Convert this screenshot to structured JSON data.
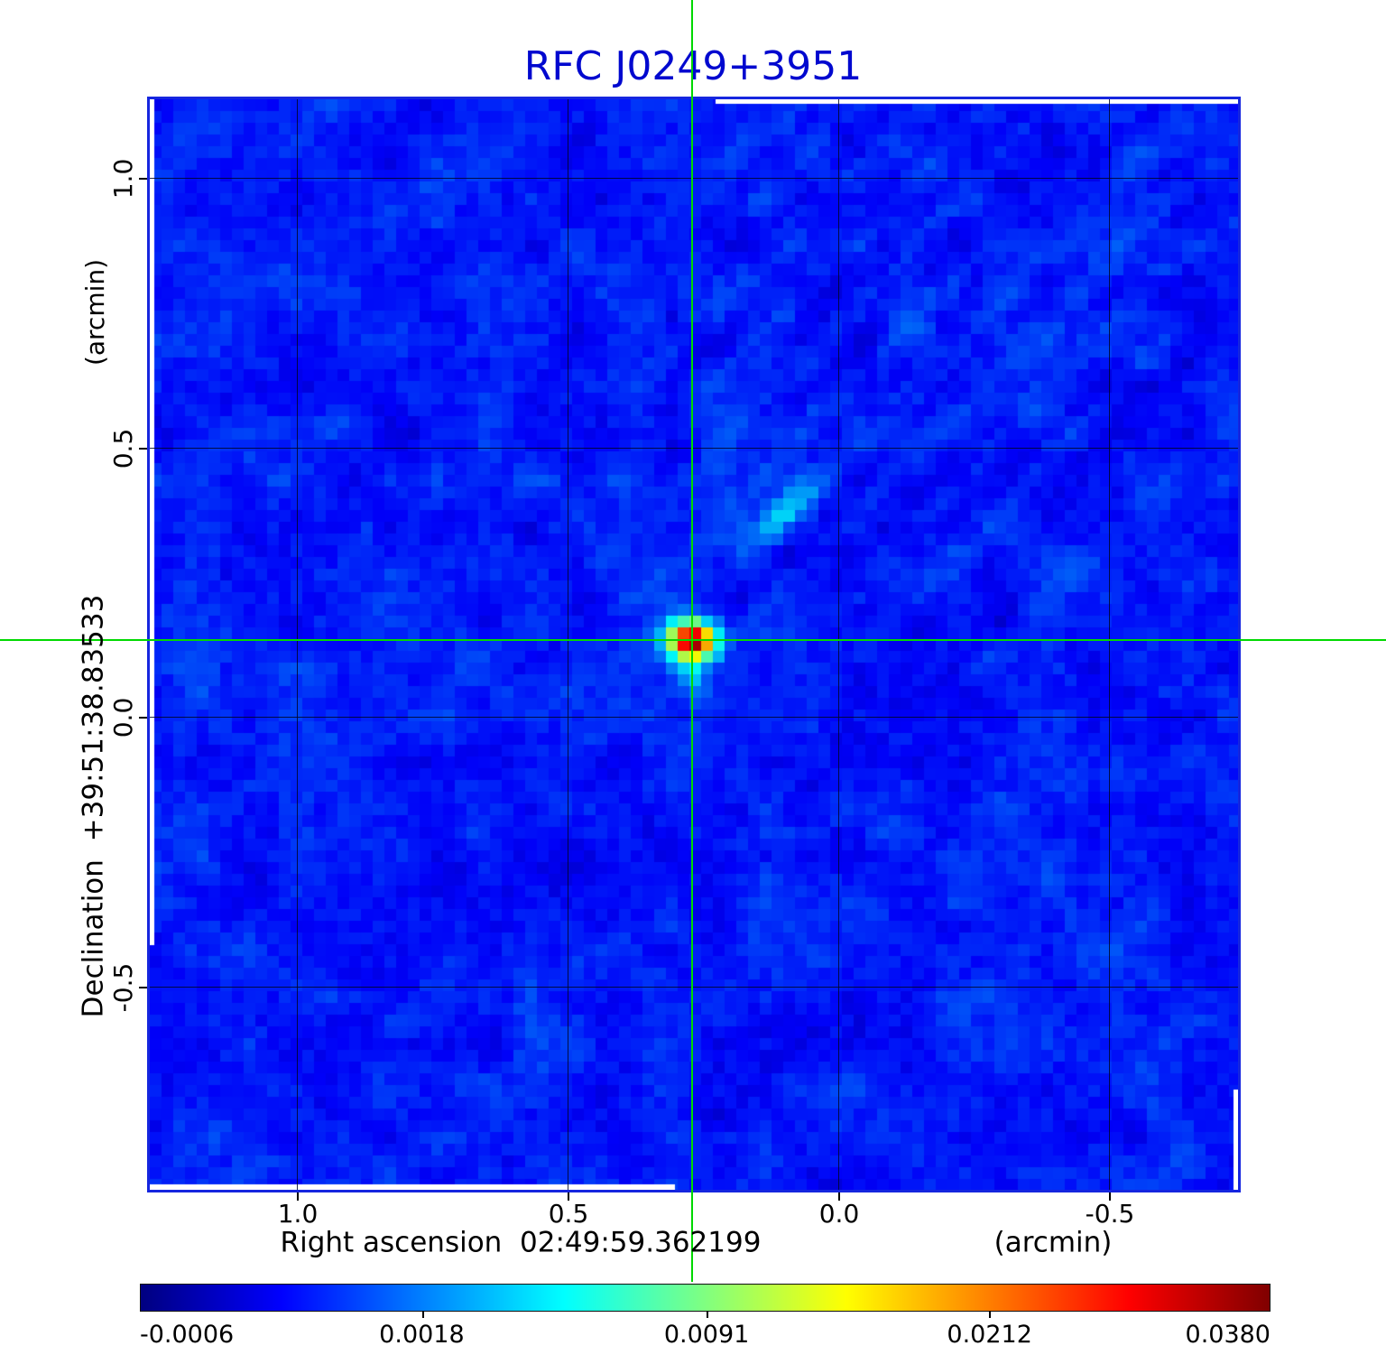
{
  "title": {
    "text": "RFC J0249+3951",
    "color": "#0008cf"
  },
  "axes": {
    "x": {
      "label": "Right ascension  02:49:59.362199",
      "unit": "(arcmin)",
      "ticks": [
        "1.0",
        "0.5",
        "0.0",
        "-0.5"
      ]
    },
    "y": {
      "label": "Declination  +39:51:38.83533",
      "unit": "(arcmin)",
      "ticks": [
        "1.0",
        "0.5",
        "0.0",
        "-0.5"
      ]
    }
  },
  "colorbar": {
    "colormap": "jet",
    "ticks": [
      "-0.0006",
      "0.0018",
      "0.0091",
      "0.0212",
      "0.0380"
    ]
  },
  "chart_data": {
    "type": "heatmap",
    "title": "RFC J0249+3951",
    "xlabel": "Right ascension 02:49:59.362199 (arcmin)",
    "ylabel": "Declination +39:51:38.83533 (arcmin)",
    "x_ticks_arcmin": [
      1.0,
      0.5,
      0.0,
      -0.5
    ],
    "y_ticks_arcmin": [
      1.0,
      0.5,
      0.0,
      -0.5
    ],
    "x_range_arcmin": [
      1.27,
      -0.74
    ],
    "y_range_arcmin": [
      1.15,
      -0.87
    ],
    "grid": true,
    "colormap": "jet",
    "scale": "sqrt",
    "colorbar_tick_values": [
      -0.0006,
      0.0018,
      0.0091,
      0.0212,
      0.038
    ],
    "flux_min": -0.0006,
    "flux_max": 0.038,
    "crosshair_arcmin": {
      "x": 0.272,
      "y": 0.144
    },
    "source": {
      "name": "RFC J0249+3951",
      "ra": "02:49:59.362199",
      "dec": "+39:51:38.83533",
      "x_arcmin": 0.272,
      "y_arcmin": 0.144,
      "peak_flux": 0.038
    },
    "secondary_feature": {
      "x_arcmin": 0.1,
      "y_arcmin": 0.38,
      "peak_flux": 0.004,
      "angle_deg": 45
    },
    "background": {
      "mean_flux": 0.0005,
      "rms_flux": 0.0006
    }
  }
}
